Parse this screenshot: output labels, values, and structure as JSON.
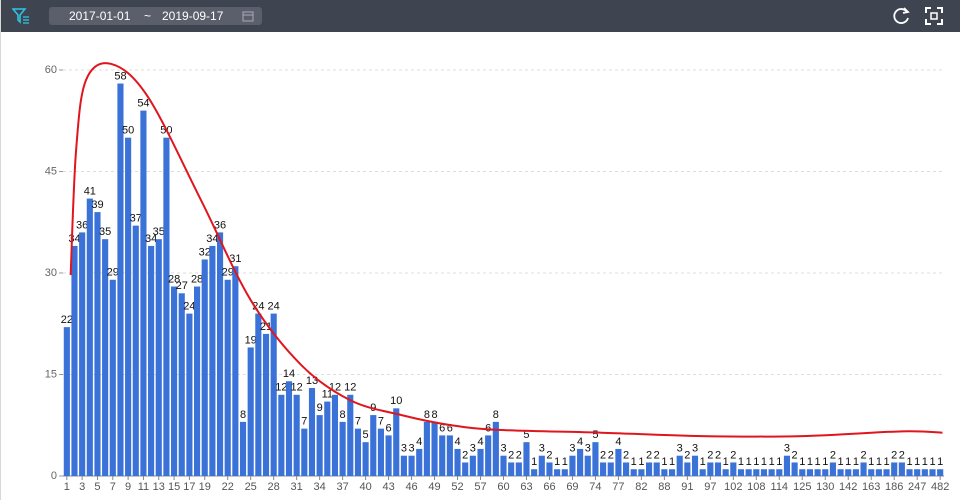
{
  "header": {
    "start_date": "2017-01-01",
    "separator": "~",
    "end_date": "2019-09-17"
  },
  "chart_data": {
    "type": "bar",
    "color": "#3a72d8",
    "label_color": "#111111",
    "categories": [
      "1",
      null,
      "3",
      null,
      "5",
      null,
      "7",
      null,
      "9",
      null,
      "11",
      null,
      "13",
      null,
      "15",
      null,
      "17",
      null,
      "19",
      null,
      null,
      "22",
      null,
      null,
      "25",
      null,
      null,
      "28",
      null,
      null,
      "31",
      null,
      null,
      "34",
      null,
      null,
      "37",
      null,
      null,
      "40",
      null,
      null,
      "43",
      null,
      null,
      "46",
      null,
      null,
      "49",
      null,
      null,
      "52",
      null,
      null,
      "57",
      null,
      null,
      "60",
      null,
      null,
      "63",
      null,
      null,
      "66",
      null,
      null,
      "69",
      null,
      null,
      "74",
      null,
      null,
      "77",
      null,
      null,
      "82",
      null,
      null,
      "88",
      null,
      null,
      "91",
      null,
      null,
      "97",
      null,
      null,
      "102",
      null,
      null,
      "108",
      null,
      null,
      "114",
      null,
      null,
      "125",
      null,
      null,
      "130",
      null,
      null,
      "142",
      null,
      null,
      "163",
      null,
      null,
      "186",
      null,
      null,
      "247",
      null,
      null,
      "482"
    ],
    "values": [
      22,
      34,
      36,
      41,
      39,
      35,
      29,
      58,
      50,
      37,
      54,
      34,
      35,
      50,
      28,
      27,
      24,
      28,
      32,
      34,
      36,
      29,
      31,
      8,
      19,
      24,
      21,
      24,
      12,
      14,
      12,
      7,
      13,
      9,
      11,
      12,
      8,
      12,
      7,
      5,
      9,
      7,
      6,
      10,
      3,
      3,
      4,
      8,
      8,
      6,
      6,
      4,
      2,
      3,
      4,
      6,
      8,
      3,
      2,
      2,
      5,
      1,
      3,
      2,
      1,
      1,
      3,
      4,
      3,
      5,
      2,
      2,
      4,
      2,
      1,
      1,
      2,
      2,
      1,
      1,
      3,
      2,
      3,
      1,
      2,
      2,
      1,
      2,
      1,
      1,
      1,
      1,
      1,
      1,
      3,
      2,
      1,
      1,
      1,
      1,
      2,
      1,
      1,
      1,
      2,
      1,
      1,
      1,
      2,
      2,
      1,
      1,
      1,
      1,
      1
    ],
    "ylim": [
      0,
      60
    ],
    "yticks": [
      0,
      15,
      30,
      45,
      60
    ],
    "grid": true,
    "curve": {
      "type": "line",
      "color": "#e0161e",
      "x": [
        0.5,
        1.2,
        2.5,
        5.8,
        10.6,
        17.5,
        24,
        30.6,
        37,
        43.7,
        50.2,
        56.7,
        69.8,
        82.9,
        96,
        109,
        114.3
      ],
      "values": [
        29.7,
        48,
        58.5,
        60.9,
        56,
        40.8,
        26,
        16.4,
        11.2,
        9,
        7.5,
        6.8,
        6.4,
        5.9,
        5.9,
        6.6,
        6.4
      ]
    }
  }
}
